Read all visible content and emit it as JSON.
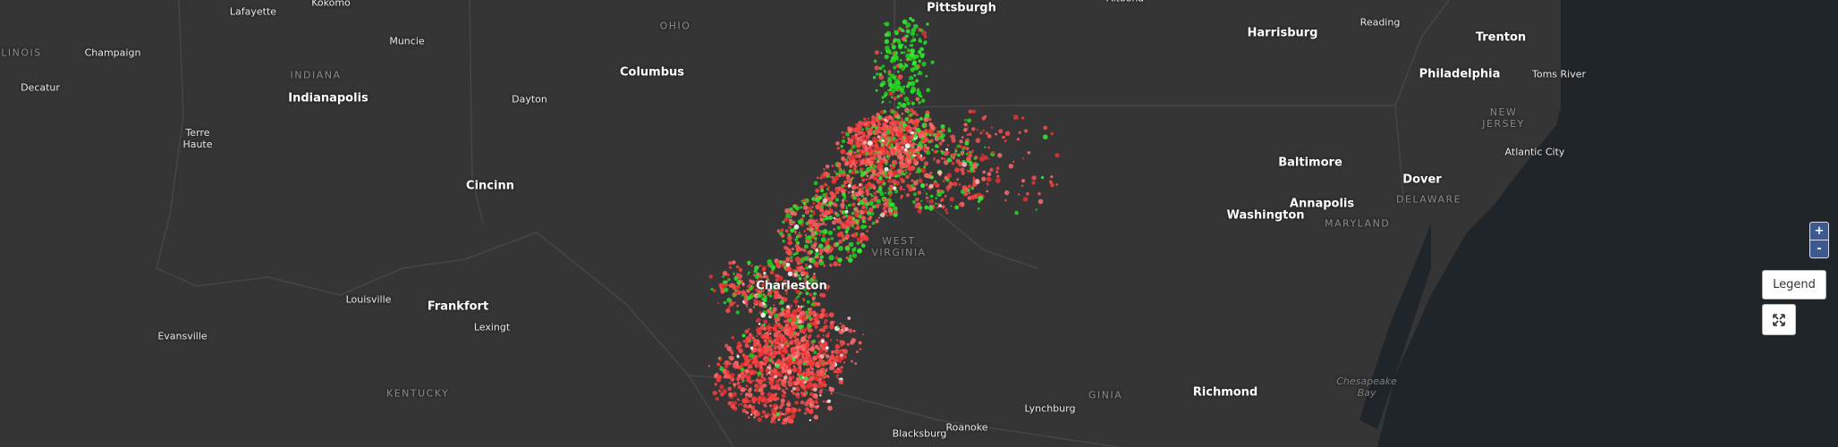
{
  "map": {
    "cities": [
      "Pittsburgh",
      "Columbus",
      "Indianapolis",
      "Cincinn",
      "Frankfort",
      "Charleston",
      "Harrisburg",
      "Trenton",
      "Philadelphia",
      "Baltimore",
      "Dover",
      "Annapolis",
      "Washington",
      "Richmond"
    ],
    "towns": [
      "Lafayette",
      "Kokomo",
      "Muncie",
      "Champaign",
      "Decatur",
      "Terre Haute",
      "Dayton",
      "Louisville",
      "Evansville",
      "Lexingt",
      "Blacksburg",
      "Roanoke",
      "Lynchburg",
      "Reading",
      "Toms River",
      "Atlantic City",
      "Altoona"
    ],
    "regions": [
      "LINOIS",
      "INDIANA",
      "OHIO",
      "KENTUCKY",
      "WEST VIRGINIA",
      "GINIA",
      "MARYLAND",
      "DELAWARE",
      "NEW JERSEY"
    ],
    "water": [
      "Chesapeake Bay"
    ]
  },
  "controls": {
    "zoom_in": "+",
    "zoom_out": "-",
    "legend": "Legend"
  }
}
